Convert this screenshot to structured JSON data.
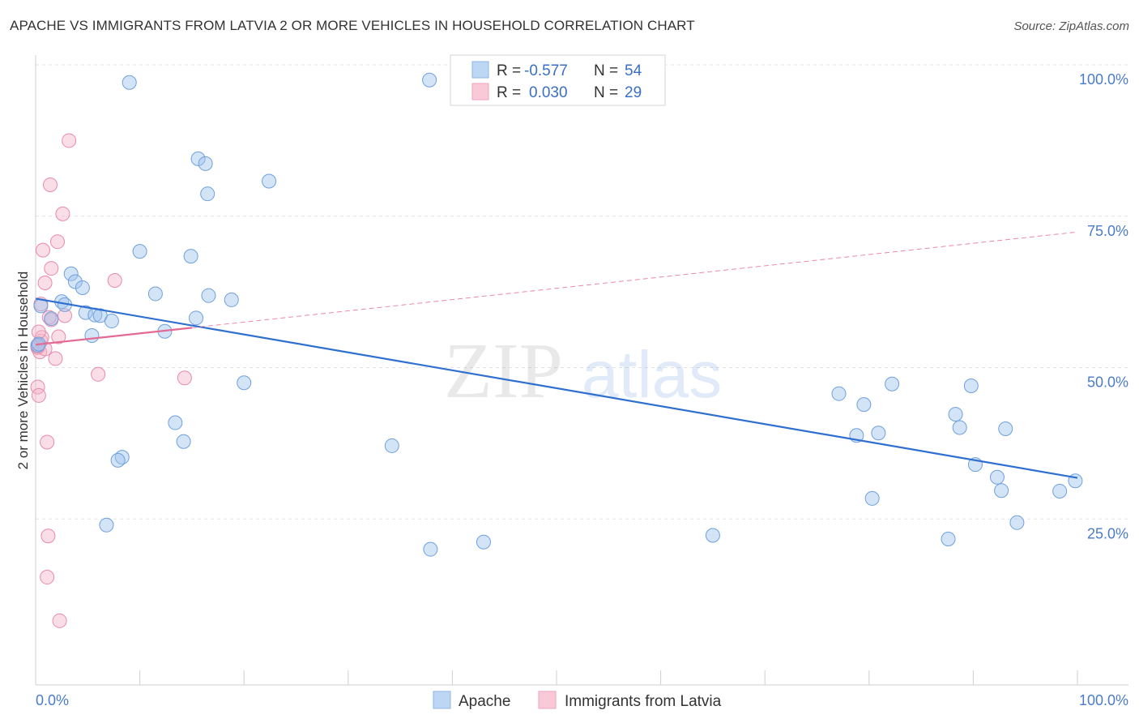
{
  "header": {
    "title": "APACHE VS IMMIGRANTS FROM LATVIA 2 OR MORE VEHICLES IN HOUSEHOLD CORRELATION CHART",
    "source": "Source: ZipAtlas.com"
  },
  "watermark": {
    "zip": "ZIP",
    "atlas": "atlas"
  },
  "chart_data": {
    "type": "scatter",
    "ylabel": "2 or more Vehicles in Household",
    "xlim": [
      0,
      100
    ],
    "ylim": [
      0,
      103
    ],
    "x_tick_labels": {
      "left": "0.0%",
      "right": "100.0%"
    },
    "y_ticks": [
      {
        "value": 25,
        "label": "25.0%"
      },
      {
        "value": 50,
        "label": "50.0%"
      },
      {
        "value": 75,
        "label": "75.0%"
      },
      {
        "value": 100,
        "label": "100.0%"
      }
    ],
    "legend": {
      "rows": [
        {
          "r_label": "R =",
          "r_value": "-0.577",
          "n_label": "N =",
          "n_value": "54"
        },
        {
          "r_label": "R =",
          "r_value": "0.030",
          "n_label": "N =",
          "n_value": "29"
        }
      ]
    },
    "series": [
      {
        "name": "Apache",
        "color": "#9dc3ee",
        "line_color": "#2f6fcf",
        "trend": {
          "x": [
            0,
            100
          ],
          "y": [
            63.8,
            34.2
          ]
        },
        "points": [
          [
            9,
            99.5
          ],
          [
            37.8,
            99.9
          ],
          [
            15.6,
            86.9
          ],
          [
            16.3,
            86.1
          ],
          [
            22.4,
            83.2
          ],
          [
            16.5,
            81.1
          ],
          [
            10,
            71.6
          ],
          [
            14.9,
            70.8
          ],
          [
            3.4,
            67.9
          ],
          [
            3.8,
            66.6
          ],
          [
            4.5,
            65.6
          ],
          [
            11.5,
            64.6
          ],
          [
            16.6,
            64.3
          ],
          [
            18.8,
            63.6
          ],
          [
            2.5,
            63.3
          ],
          [
            2.8,
            62.8
          ],
          [
            0.5,
            62.6
          ],
          [
            4.8,
            61.5
          ],
          [
            5.7,
            61.1
          ],
          [
            6.2,
            61
          ],
          [
            7.3,
            60.1
          ],
          [
            1.5,
            60.5
          ],
          [
            15.4,
            60.6
          ],
          [
            12.4,
            58.4
          ],
          [
            5.4,
            57.7
          ],
          [
            0.2,
            56.1
          ],
          [
            20,
            49.9
          ],
          [
            13.4,
            43.3
          ],
          [
            14.2,
            40.2
          ],
          [
            34.2,
            39.5
          ],
          [
            8.3,
            37.6
          ],
          [
            7.9,
            37.1
          ],
          [
            6.8,
            26.4
          ],
          [
            37.9,
            22.4
          ],
          [
            43,
            23.6
          ],
          [
            65,
            24.7
          ],
          [
            77.1,
            48.1
          ],
          [
            79.5,
            46.3
          ],
          [
            82.2,
            49.7
          ],
          [
            78.8,
            41.2
          ],
          [
            80.9,
            41.6
          ],
          [
            88.3,
            44.7
          ],
          [
            89.8,
            49.4
          ],
          [
            88.7,
            42.5
          ],
          [
            93.1,
            42.3
          ],
          [
            90.2,
            36.4
          ],
          [
            92.3,
            34.3
          ],
          [
            92.7,
            32.1
          ],
          [
            98.3,
            32
          ],
          [
            99.8,
            33.7
          ],
          [
            94.2,
            26.8
          ],
          [
            80.3,
            30.8
          ],
          [
            87.6,
            24.1
          ],
          [
            0.3,
            56.3
          ]
        ]
      },
      {
        "name": "Immigrants from Latvia",
        "color": "#f4b6c9",
        "line_color": "#e46a94",
        "trend": {
          "x": [
            0,
            100
          ],
          "y": [
            56.2,
            74.8
          ]
        },
        "trend_solid_until": 15,
        "points": [
          [
            3.2,
            89.9
          ],
          [
            1.4,
            82.6
          ],
          [
            2.6,
            77.8
          ],
          [
            2.1,
            73.2
          ],
          [
            0.7,
            71.8
          ],
          [
            1.5,
            68.8
          ],
          [
            7.6,
            66.8
          ],
          [
            0.9,
            66.4
          ],
          [
            0.5,
            62.9
          ],
          [
            2.8,
            61
          ],
          [
            1.5,
            60.3
          ],
          [
            2.2,
            57.5
          ],
          [
            0.5,
            56.8
          ],
          [
            0.2,
            55.7
          ],
          [
            0.4,
            55
          ],
          [
            0.9,
            55.5
          ],
          [
            0.2,
            55.9
          ],
          [
            1.9,
            53.9
          ],
          [
            0.2,
            49.2
          ],
          [
            0.3,
            47.8
          ],
          [
            6,
            51.3
          ],
          [
            14.3,
            50.7
          ],
          [
            1.1,
            40.1
          ],
          [
            1.2,
            24.6
          ],
          [
            1.1,
            17.8
          ],
          [
            2.3,
            10.6
          ],
          [
            0.6,
            57.4
          ],
          [
            1.3,
            60.7
          ],
          [
            0.3,
            58.3
          ]
        ]
      }
    ]
  }
}
